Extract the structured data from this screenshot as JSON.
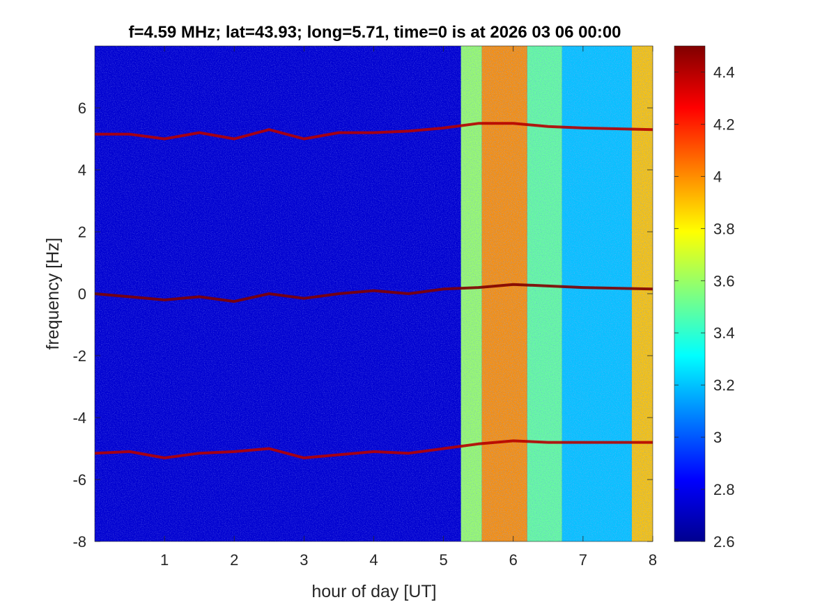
{
  "chart_data": {
    "type": "heatmap",
    "title": "f=4.59 MHz;  lat=43.93; long=5.71, time=0 is at 2026 03 06 00:00",
    "xlabel": "hour of day [UT]",
    "ylabel": "frequency [Hz]",
    "xlim": [
      0,
      8
    ],
    "ylim": [
      -8,
      8
    ],
    "x_ticks": [
      1,
      2,
      3,
      4,
      5,
      6,
      7,
      8
    ],
    "x_tick_labels": [
      "1",
      "2",
      "3",
      "4",
      "5",
      "6",
      "7",
      "8"
    ],
    "y_ticks": [
      6,
      4,
      2,
      0,
      -2,
      -4,
      -6,
      -8
    ],
    "y_tick_labels": [
      "6",
      "4",
      "2",
      "0",
      "-2",
      "-4",
      "-6",
      "-8"
    ],
    "colormap": "jet",
    "clim": [
      2.6,
      4.5
    ],
    "colorbar_ticks": [
      4.4,
      4.2,
      4,
      3.8,
      3.6,
      3.4,
      3.2,
      3,
      2.8,
      2.6
    ],
    "colorbar_tick_labels": [
      "4.4",
      "4.2",
      "4",
      "3.8",
      "3.6",
      "3.4",
      "3.2",
      "3",
      "2.8",
      "2.6"
    ],
    "background_level": 2.75,
    "noise_bands": [
      {
        "x_start": 5.25,
        "x_end": 5.55,
        "level": 3.6
      },
      {
        "x_start": 5.55,
        "x_end": 6.2,
        "level": 4.0
      },
      {
        "x_start": 6.2,
        "x_end": 6.7,
        "level": 3.5
      },
      {
        "x_start": 6.7,
        "x_end": 7.7,
        "level": 3.2
      },
      {
        "x_start": 7.7,
        "x_end": 8.0,
        "level": 3.9
      }
    ],
    "series": [
      {
        "name": "",
        "level": 4.4,
        "x": [
          0,
          0.5,
          1,
          1.5,
          2,
          2.5,
          3,
          3.5,
          4,
          4.5,
          5,
          5.5,
          6,
          6.5,
          7,
          8
        ],
        "y": [
          5.15,
          5.15,
          5.0,
          5.2,
          5.0,
          5.3,
          5.0,
          5.2,
          5.2,
          5.25,
          5.35,
          5.5,
          5.5,
          5.4,
          5.35,
          5.3
        ]
      },
      {
        "name": "",
        "level": 4.5,
        "x": [
          0,
          0.5,
          1,
          1.5,
          2,
          2.5,
          3,
          3.5,
          4,
          4.5,
          5,
          5.5,
          6,
          6.5,
          7,
          8
        ],
        "y": [
          0.0,
          -0.1,
          -0.2,
          -0.1,
          -0.25,
          0.0,
          -0.15,
          0.0,
          0.1,
          0.0,
          0.15,
          0.2,
          0.3,
          0.25,
          0.2,
          0.15
        ]
      },
      {
        "name": "",
        "level": 4.4,
        "x": [
          0,
          0.5,
          1,
          1.5,
          2,
          2.5,
          3,
          3.5,
          4,
          4.5,
          5,
          5.5,
          6,
          6.5,
          7,
          8
        ],
        "y": [
          -5.15,
          -5.1,
          -5.3,
          -5.15,
          -5.1,
          -5.0,
          -5.3,
          -5.2,
          -5.1,
          -5.15,
          -5.0,
          -4.85,
          -4.75,
          -4.8,
          -4.8,
          -4.8
        ]
      }
    ],
    "grid": false,
    "legend": "none"
  }
}
